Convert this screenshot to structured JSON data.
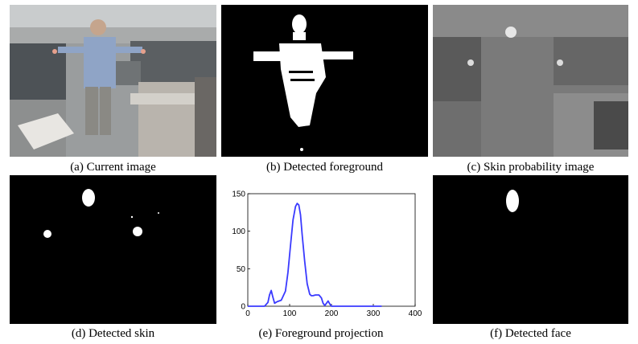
{
  "figure": {
    "panels": [
      {
        "id": "a",
        "caption": "(a) Current image",
        "content": "photo"
      },
      {
        "id": "b",
        "caption": "(b) Detected foreground",
        "content": "foreground-mask"
      },
      {
        "id": "c",
        "caption": "(c) Skin probability image",
        "content": "skin-probability"
      },
      {
        "id": "d",
        "caption": "(d) Detected skin",
        "content": "skin-mask"
      },
      {
        "id": "e",
        "caption": "(e) Foreground projection",
        "content": "chart"
      },
      {
        "id": "f",
        "caption": "(f) Detected face",
        "content": "face-mask"
      }
    ]
  },
  "colors": {
    "line": "#3a3aff",
    "mask_bg": "#000000",
    "mask_fg": "#ffffff"
  },
  "chart_data": {
    "type": "line",
    "title": "",
    "xlabel": "",
    "ylabel": "",
    "xlim": [
      0,
      400
    ],
    "ylim": [
      0,
      150
    ],
    "xticks": [
      0,
      100,
      200,
      300,
      400
    ],
    "yticks": [
      0,
      50,
      100,
      150
    ],
    "grid": false,
    "series": [
      {
        "x": [
          0,
          20,
          40,
          48,
          52,
          56,
          60,
          64,
          70,
          80,
          90,
          96,
          102,
          108,
          114,
          118,
          122,
          126,
          130,
          136,
          142,
          148,
          152,
          156,
          162,
          170,
          176,
          180,
          184,
          188,
          192,
          196,
          200,
          210,
          260,
          320
        ],
        "y": [
          0,
          0,
          0,
          5,
          15,
          21,
          12,
          4,
          6,
          8,
          20,
          45,
          80,
          115,
          133,
          137,
          135,
          122,
          95,
          60,
          30,
          16,
          14,
          14,
          15,
          15,
          11,
          4,
          1,
          4,
          7,
          3,
          0,
          0,
          0,
          0
        ]
      }
    ]
  }
}
